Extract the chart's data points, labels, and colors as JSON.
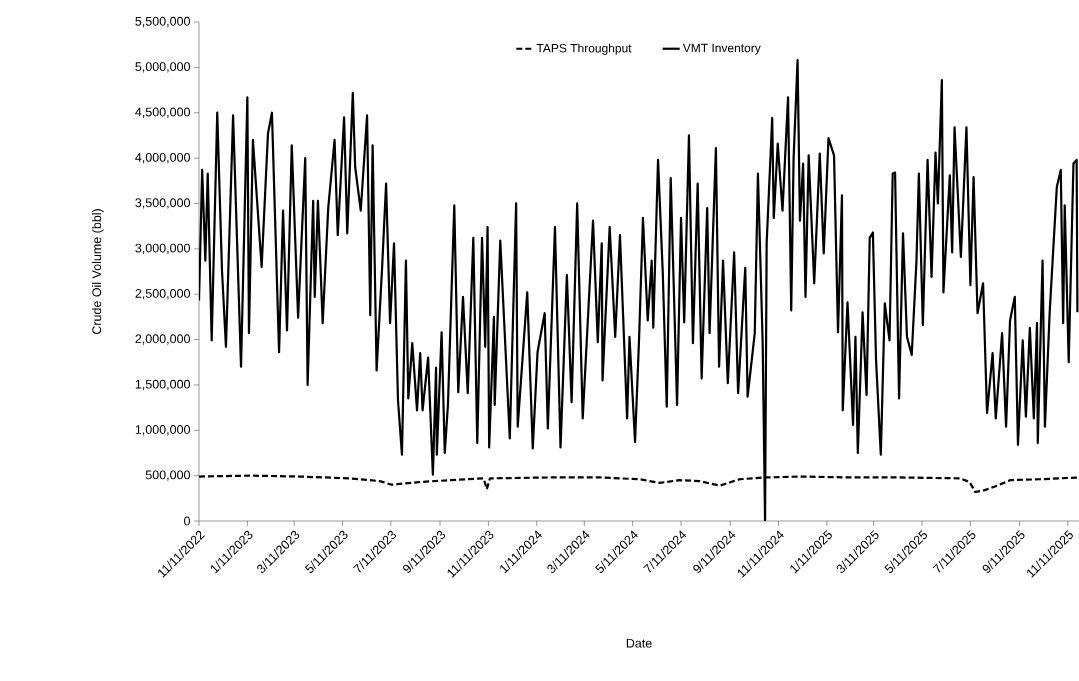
{
  "chart_data": {
    "type": "line",
    "xlabel": "Date",
    "ylabel": "Crude Oil Volume (bbl)",
    "xlim": [
      "2022-11-11",
      "2025-11-25"
    ],
    "ylim": [
      0,
      5500000
    ],
    "xticks": [
      {
        "value": "2022-11-11",
        "label": "11/11/2022"
      },
      {
        "value": "2023-01-11",
        "label": "1/11/2023"
      },
      {
        "value": "2023-03-11",
        "label": "3/11/2023"
      },
      {
        "value": "2023-05-11",
        "label": "5/11/2023"
      },
      {
        "value": "2023-07-11",
        "label": "7/11/2023"
      },
      {
        "value": "2023-09-11",
        "label": "9/11/2023"
      },
      {
        "value": "2023-11-11",
        "label": "11/11/2023"
      },
      {
        "value": "2024-01-11",
        "label": "1/11/2024"
      },
      {
        "value": "2024-03-11",
        "label": "3/11/2024"
      },
      {
        "value": "2024-05-11",
        "label": "5/11/2024"
      },
      {
        "value": "2024-07-11",
        "label": "7/11/2024"
      },
      {
        "value": "2024-09-11",
        "label": "9/11/2024"
      },
      {
        "value": "2024-11-11",
        "label": "11/11/2024"
      },
      {
        "value": "2025-01-11",
        "label": "1/11/2025"
      },
      {
        "value": "2025-03-11",
        "label": "3/11/2025"
      },
      {
        "value": "2025-05-11",
        "label": "5/11/2025"
      },
      {
        "value": "2025-07-11",
        "label": "7/11/2025"
      },
      {
        "value": "2025-09-11",
        "label": "9/11/2025"
      },
      {
        "value": "2025-11-11",
        "label": "11/11/2025"
      }
    ],
    "yticks": [
      {
        "value": 0,
        "label": "0"
      },
      {
        "value": 500000,
        "label": "500,000"
      },
      {
        "value": 1000000,
        "label": "1,000,000"
      },
      {
        "value": 1500000,
        "label": "1,500,000"
      },
      {
        "value": 2000000,
        "label": "2,000,000"
      },
      {
        "value": 2500000,
        "label": "2,500,000"
      },
      {
        "value": 3000000,
        "label": "3,000,000"
      },
      {
        "value": 3500000,
        "label": "3,500,000"
      },
      {
        "value": 4000000,
        "label": "4,000,000"
      },
      {
        "value": 4500000,
        "label": "4,500,000"
      },
      {
        "value": 5000000,
        "label": "5,000,000"
      },
      {
        "value": 5500000,
        "label": "5,500,000"
      }
    ],
    "grid": false,
    "legend": "top",
    "marker": "none",
    "series": [
      {
        "name": "TAPS Throughput",
        "color": "#000000",
        "line_style": "dashed",
        "x": [
          "2022-11-11",
          "2023-01-14",
          "2023-03-18",
          "2023-05-20",
          "2023-06-27",
          "2023-07-12",
          "2023-08-17",
          "2023-09-24",
          "2023-11-05",
          "2023-11-09",
          "2023-11-13",
          "2024-01-28",
          "2024-03-31",
          "2024-05-20",
          "2024-06-14",
          "2024-07-09",
          "2024-08-03",
          "2024-08-29",
          "2024-09-23",
          "2024-10-25",
          "2024-12-08",
          "2025-02-09",
          "2025-04-13",
          "2025-06-28",
          "2025-07-10",
          "2025-07-17",
          "2025-07-29",
          "2025-08-11",
          "2025-08-30",
          "2025-10-06",
          "2025-11-25"
        ],
        "values": [
          490000,
          500000,
          490000,
          470000,
          440000,
          400000,
          430000,
          450000,
          470000,
          350000,
          470000,
          480000,
          480000,
          460000,
          420000,
          450000,
          440000,
          390000,
          460000,
          480000,
          490000,
          480000,
          480000,
          470000,
          430000,
          320000,
          340000,
          380000,
          450000,
          460000,
          480000
        ]
      },
      {
        "name": "VMT Inventory",
        "color": "#000000",
        "line_style": "solid",
        "x": [
          "2022-11-11",
          "2022-11-15",
          "2022-11-19",
          "2022-11-22",
          "2022-11-27",
          "2022-12-04",
          "2022-12-10",
          "2022-12-15",
          "2022-12-24",
          "2023-01-03",
          "2023-01-11",
          "2023-01-13",
          "2023-01-18",
          "2023-01-29",
          "2023-02-06",
          "2023-02-11",
          "2023-02-20",
          "2023-02-25",
          "2023-03-02",
          "2023-03-08",
          "2023-03-16",
          "2023-03-25",
          "2023-03-28",
          "2023-04-04",
          "2023-04-06",
          "2023-04-10",
          "2023-04-16",
          "2023-04-23",
          "2023-05-01",
          "2023-05-05",
          "2023-05-13",
          "2023-05-17",
          "2023-05-24",
          "2023-05-27",
          "2023-06-03",
          "2023-06-11",
          "2023-06-15",
          "2023-06-18",
          "2023-06-23",
          "2023-06-30",
          "2023-07-05",
          "2023-07-10",
          "2023-07-15",
          "2023-07-20",
          "2023-07-25",
          "2023-07-30",
          "2023-08-02",
          "2023-08-07",
          "2023-08-13",
          "2023-08-17",
          "2023-08-20",
          "2023-08-27",
          "2023-09-02",
          "2023-09-06",
          "2023-09-07",
          "2023-09-13",
          "2023-09-17",
          "2023-09-21",
          "2023-09-29",
          "2023-10-04",
          "2023-10-10",
          "2023-10-16",
          "2023-10-23",
          "2023-10-28",
          "2023-11-03",
          "2023-11-07",
          "2023-11-10",
          "2023-11-12",
          "2023-11-18",
          "2023-11-19",
          "2023-11-26",
          "2023-12-08",
          "2023-12-16",
          "2023-12-18",
          "2023-12-30",
          "2024-01-06",
          "2024-01-12",
          "2024-01-21",
          "2024-01-25",
          "2024-02-03",
          "2024-02-10",
          "2024-02-18",
          "2024-02-24",
          "2024-03-02",
          "2024-03-09",
          "2024-03-22",
          "2024-03-28",
          "2024-04-02",
          "2024-04-03",
          "2024-04-12",
          "2024-04-19",
          "2024-04-25",
          "2024-05-04",
          "2024-05-07",
          "2024-05-14",
          "2024-05-19",
          "2024-05-24",
          "2024-05-30",
          "2024-06-04",
          "2024-06-06",
          "2024-06-12",
          "2024-06-18",
          "2024-06-23",
          "2024-06-28",
          "2024-07-06",
          "2024-07-11",
          "2024-07-15",
          "2024-07-21",
          "2024-07-26",
          "2024-08-01",
          "2024-08-06",
          "2024-08-13",
          "2024-08-16",
          "2024-08-24",
          "2024-08-28",
          "2024-09-02",
          "2024-09-08",
          "2024-09-16",
          "2024-09-21",
          "2024-09-30",
          "2024-10-03",
          "2024-10-12",
          "2024-10-16",
          "2024-10-22",
          "2024-10-25",
          "2024-10-27",
          "2024-11-03",
          "2024-11-05",
          "2024-11-10",
          "2024-11-16",
          "2024-11-23",
          "2024-11-27",
          "2024-11-30",
          "2024-12-05",
          "2024-12-08",
          "2024-12-12",
          "2024-12-15",
          "2024-12-19",
          "2024-12-26",
          "2025-01-02",
          "2025-01-07",
          "2025-01-13",
          "2025-01-20",
          "2025-01-25",
          "2025-01-30",
          "2025-01-31",
          "2025-02-06",
          "2025-02-13",
          "2025-02-16",
          "2025-02-19",
          "2025-02-25",
          "2025-03-02",
          "2025-03-06",
          "2025-03-10",
          "2025-03-14",
          "2025-03-20",
          "2025-03-25",
          "2025-03-31",
          "2025-04-04",
          "2025-04-07",
          "2025-04-12",
          "2025-04-17",
          "2025-04-22",
          "2025-04-28",
          "2025-05-04",
          "2025-05-07",
          "2025-05-12",
          "2025-05-18",
          "2025-05-23",
          "2025-05-28",
          "2025-05-31",
          "2025-06-05",
          "2025-06-07",
          "2025-06-15",
          "2025-06-18",
          "2025-06-21",
          "2025-06-29",
          "2025-07-06",
          "2025-07-11",
          "2025-07-15",
          "2025-07-20",
          "2025-07-27",
          "2025-08-01",
          "2025-08-08",
          "2025-08-12",
          "2025-08-20",
          "2025-08-25",
          "2025-08-30",
          "2025-09-05",
          "2025-09-09",
          "2025-09-15",
          "2025-09-19",
          "2025-09-24",
          "2025-09-29",
          "2025-10-03",
          "2025-10-04",
          "2025-10-10",
          "2025-10-13",
          "2025-10-19",
          "2025-10-28",
          "2025-11-02",
          "2025-11-05",
          "2025-11-07",
          "2025-11-12",
          "2025-11-18",
          "2025-11-22",
          "2025-11-23"
        ],
        "values": [
          2430000,
          3870000,
          2870000,
          3830000,
          1990000,
          4500000,
          2760000,
          1920000,
          4470000,
          1700000,
          4670000,
          2070000,
          4200000,
          2800000,
          4270000,
          4500000,
          1860000,
          3420000,
          2100000,
          4140000,
          2240000,
          4000000,
          1500000,
          3530000,
          2470000,
          3530000,
          2180000,
          3450000,
          4200000,
          3150000,
          4450000,
          3170000,
          4720000,
          3900000,
          3420000,
          4470000,
          2270000,
          4140000,
          1660000,
          2800000,
          3720000,
          2180000,
          3060000,
          1330000,
          730000,
          2870000,
          1350000,
          1960000,
          1220000,
          1850000,
          1220000,
          1800000,
          510000,
          1690000,
          730000,
          2080000,
          750000,
          1280000,
          3480000,
          1420000,
          2470000,
          1410000,
          3120000,
          860000,
          3120000,
          1920000,
          3240000,
          810000,
          2250000,
          1280000,
          3090000,
          910000,
          3500000,
          1040000,
          2520000,
          800000,
          1860000,
          2290000,
          1020000,
          3240000,
          810000,
          2710000,
          1310000,
          3500000,
          1130000,
          3310000,
          1970000,
          3060000,
          1550000,
          3240000,
          2030000,
          3150000,
          1130000,
          2030000,
          870000,
          1990000,
          3340000,
          2210000,
          2870000,
          2130000,
          3980000,
          2730000,
          1260000,
          3780000,
          1280000,
          3340000,
          2190000,
          4250000,
          1960000,
          3720000,
          1570000,
          3450000,
          2070000,
          4110000,
          1700000,
          2870000,
          1520000,
          2960000,
          1410000,
          2790000,
          1370000,
          2070000,
          3830000,
          1960000,
          0,
          3060000,
          4440000,
          3340000,
          4160000,
          3420000,
          4670000,
          2320000,
          4000000,
          5080000,
          3310000,
          3940000,
          2470000,
          4030000,
          2620000,
          4050000,
          2950000,
          4220000,
          4030000,
          2080000,
          3590000,
          1220000,
          2410000,
          1060000,
          2030000,
          750000,
          2300000,
          1390000,
          3120000,
          3180000,
          1770000,
          730000,
          2400000,
          1990000,
          3830000,
          3840000,
          1350000,
          3170000,
          2030000,
          1830000,
          2870000,
          3830000,
          2160000,
          3980000,
          2690000,
          4060000,
          3500000,
          4860000,
          2520000,
          3810000,
          2960000,
          4340000,
          2910000,
          4340000,
          2600000,
          3790000,
          2290000,
          2620000,
          1190000,
          1850000,
          1130000,
          2070000,
          1040000,
          2210000,
          2470000,
          840000,
          1990000,
          1150000,
          2130000,
          1130000,
          2180000,
          860000,
          2870000,
          1040000,
          2300000,
          3680000,
          3870000,
          2180000,
          3480000,
          1750000,
          3940000,
          3980000,
          2300000
        ]
      }
    ]
  }
}
